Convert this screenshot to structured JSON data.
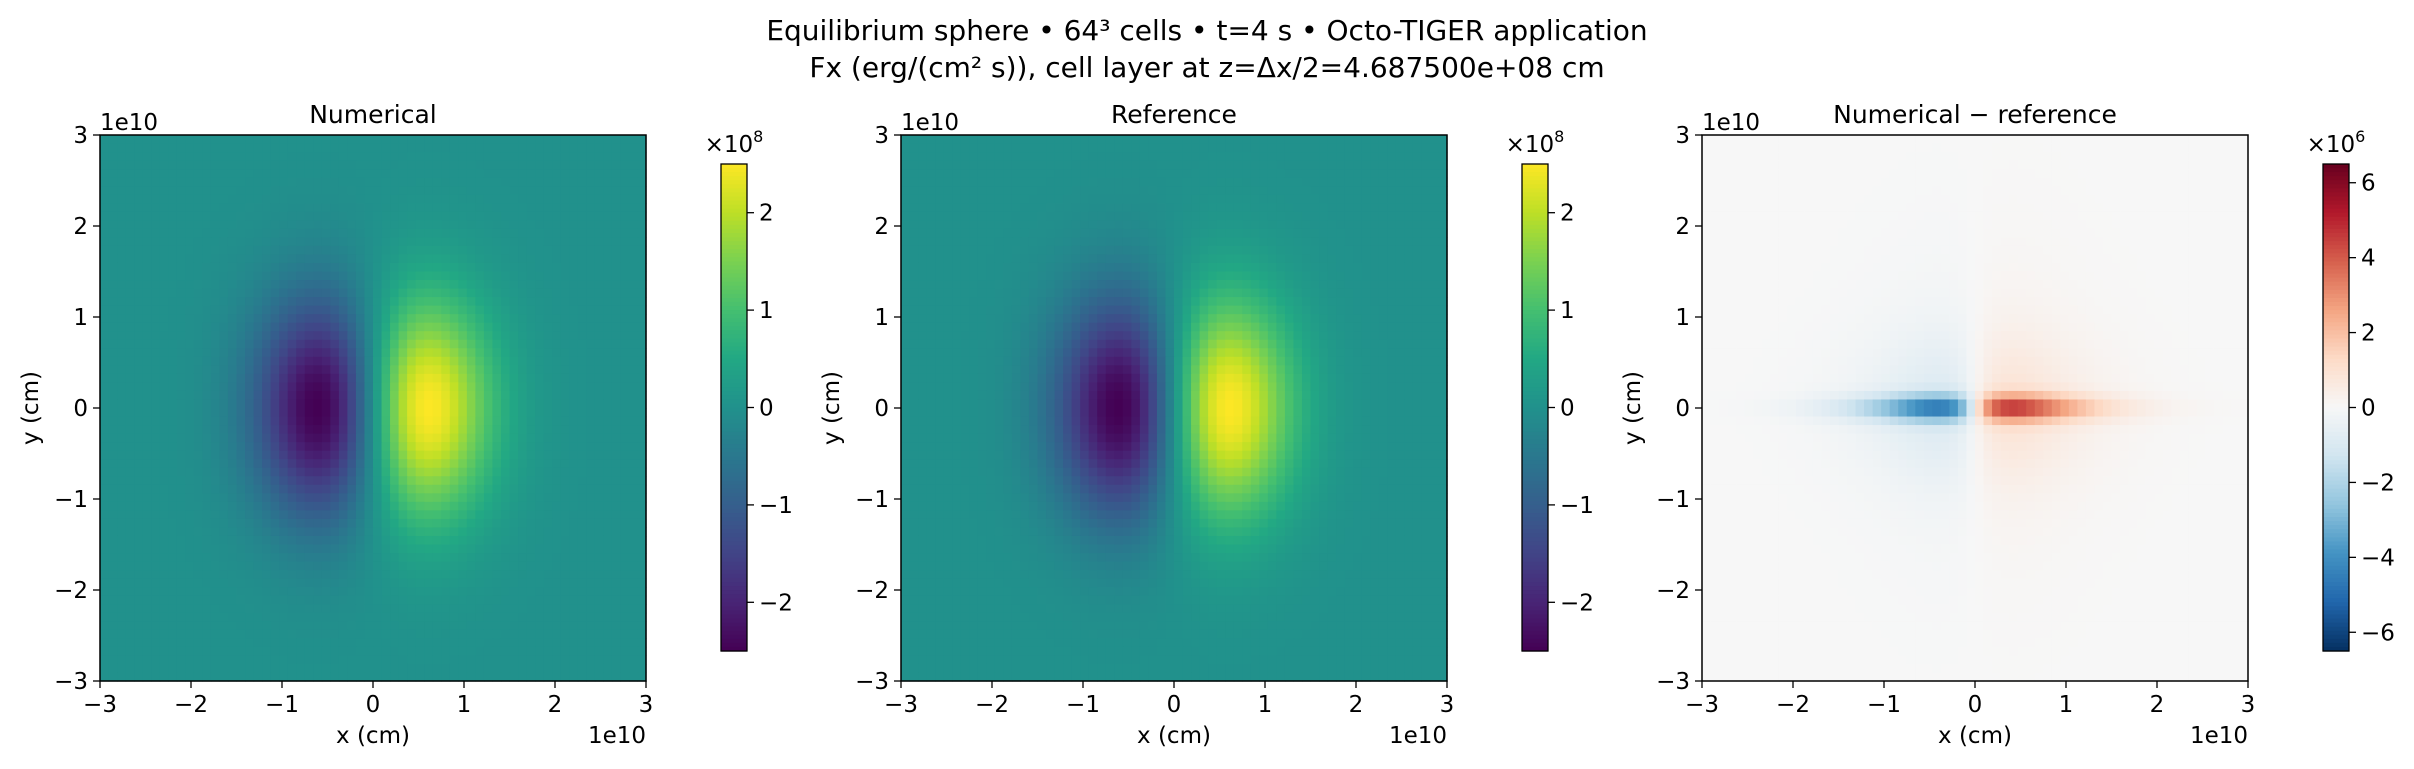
{
  "figure": {
    "title_line1": "Equilibrium sphere • 64³ cells • t=4 s • Octo-TIGER application",
    "title_line2": "Fx (erg/(cm² s)), cell layer at z=Δx/2=4.687500e+08 cm"
  },
  "chart_data": [
    {
      "type": "heatmap",
      "title": "Numerical",
      "xlabel": "x (cm)",
      "ylabel": "y (cm)",
      "xlim": [
        -3,
        3
      ],
      "ylim": [
        -3,
        3
      ],
      "axis_scale_label": "1e10",
      "xticks": [
        "−3",
        "−2",
        "−1",
        "0",
        "1",
        "2",
        "3"
      ],
      "yticks": [
        "−3",
        "−2",
        "−1",
        "0",
        "1",
        "2",
        "3"
      ],
      "grid": 64,
      "field": "dipole",
      "colormap": "viridis",
      "colors": [
        "#440154",
        "#482475",
        "#414487",
        "#355f8d",
        "#2a788e",
        "#21918c",
        "#22a884",
        "#44bf70",
        "#7ad151",
        "#bddf26",
        "#fde725"
      ],
      "colorbar": {
        "min": -2.5,
        "max": 2.5,
        "ticks": [
          -2,
          -1,
          0,
          1,
          2
        ],
        "tick_labels": [
          "−2",
          "−1",
          "0",
          "1",
          "2"
        ],
        "multiplier": "×10",
        "exponent": "8"
      }
    },
    {
      "type": "heatmap",
      "title": "Reference",
      "xlabel": "x (cm)",
      "ylabel": "y (cm)",
      "xlim": [
        -3,
        3
      ],
      "ylim": [
        -3,
        3
      ],
      "axis_scale_label": "1e10",
      "xticks": [
        "−3",
        "−2",
        "−1",
        "0",
        "1",
        "2",
        "3"
      ],
      "yticks": [
        "−3",
        "−2",
        "−1",
        "0",
        "1",
        "2",
        "3"
      ],
      "grid": 64,
      "field": "dipole",
      "colormap": "viridis",
      "colors": [
        "#440154",
        "#482475",
        "#414487",
        "#355f8d",
        "#2a788e",
        "#21918c",
        "#22a884",
        "#44bf70",
        "#7ad151",
        "#bddf26",
        "#fde725"
      ],
      "colorbar": {
        "min": -2.5,
        "max": 2.5,
        "ticks": [
          -2,
          -1,
          0,
          1,
          2
        ],
        "tick_labels": [
          "−2",
          "−1",
          "0",
          "1",
          "2"
        ],
        "multiplier": "×10",
        "exponent": "8"
      }
    },
    {
      "type": "heatmap",
      "title": "Numerical − reference",
      "xlabel": "x (cm)",
      "ylabel": "y (cm)",
      "xlim": [
        -3,
        3
      ],
      "ylim": [
        -3,
        3
      ],
      "axis_scale_label": "1e10",
      "xticks": [
        "−3",
        "−2",
        "−1",
        "0",
        "1",
        "2",
        "3"
      ],
      "yticks": [
        "−3",
        "−2",
        "−1",
        "0",
        "1",
        "2",
        "3"
      ],
      "grid": 64,
      "field": "difference",
      "colormap": "RdBu_r",
      "colors": [
        "#053061",
        "#2166ac",
        "#4393c3",
        "#92c5de",
        "#d1e5f0",
        "#f7f7f7",
        "#fddbc7",
        "#f4a582",
        "#d6604d",
        "#b2182b",
        "#67001f"
      ],
      "colorbar": {
        "min": -6.5,
        "max": 6.5,
        "ticks": [
          -6,
          -4,
          -2,
          0,
          2,
          4,
          6
        ],
        "tick_labels": [
          "−6",
          "−4",
          "−2",
          "0",
          "2",
          "4",
          "6"
        ],
        "multiplier": "×10",
        "exponent": "6"
      }
    }
  ]
}
